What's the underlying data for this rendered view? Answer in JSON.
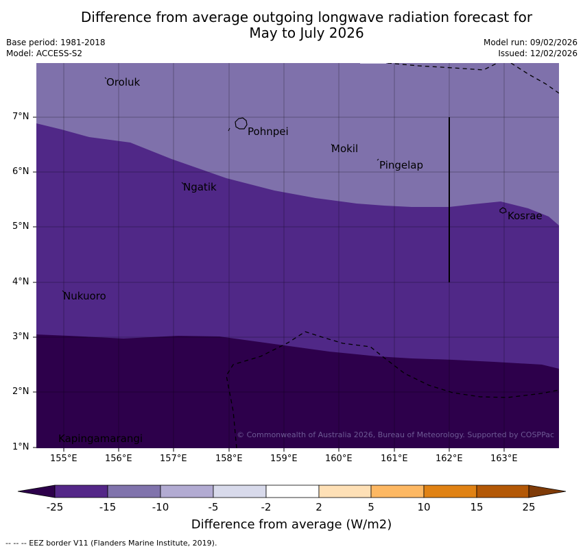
{
  "title": {
    "line1": "Difference from average outgoing longwave radiation forecast for",
    "line2": "May to July 2026"
  },
  "meta": {
    "base_period": "Base period: 1981-2018",
    "model": "Model: ACCESS-S2",
    "model_run": "Model run: 09/02/2026",
    "issued": "Issued: 12/02/2026"
  },
  "map": {
    "lon_labels": [
      "155°E",
      "156°E",
      "157°E",
      "158°E",
      "159°E",
      "160°E",
      "161°E",
      "162°E",
      "163°E"
    ],
    "lat_labels": [
      "1°N",
      "2°N",
      "3°N",
      "4°N",
      "5°N",
      "6°N",
      "7°N"
    ],
    "places": {
      "oroluk": "Oroluk",
      "pohnpei": "Pohnpei",
      "mokil": "Mokil",
      "pingelap": "Pingelap",
      "ngatik": "Ngatik",
      "kosrae": "Kosrae",
      "nukuoro": "Nukuoro",
      "kapingamarangi": "Kapingamarangi"
    },
    "copyright": "© Commonwealth of Australia 2026, Bureau of Meteorology. Supported by COSPPac",
    "colors": {
      "band_-10_-5": "#7f71ab",
      "band_-25_-15": "#502887",
      "band_lt_-25": "#2d004b"
    }
  },
  "colorbar": {
    "ticks": [
      "-25",
      "-15",
      "-10",
      "-5",
      "-2",
      "2",
      "5",
      "10",
      "15",
      "25"
    ],
    "colors": [
      "#2d004b",
      "#542788",
      "#8073ac",
      "#b2abd2",
      "#d8daeb",
      "#ffffff",
      "#fee0b6",
      "#fdb863",
      "#e08214",
      "#b35806",
      "#7f3b08"
    ],
    "label": "Difference from average (W/m2)"
  },
  "footer": {
    "eez_note": "--  --  -- EEZ border V11 (Flanders Marine Institute, 2019)."
  }
}
